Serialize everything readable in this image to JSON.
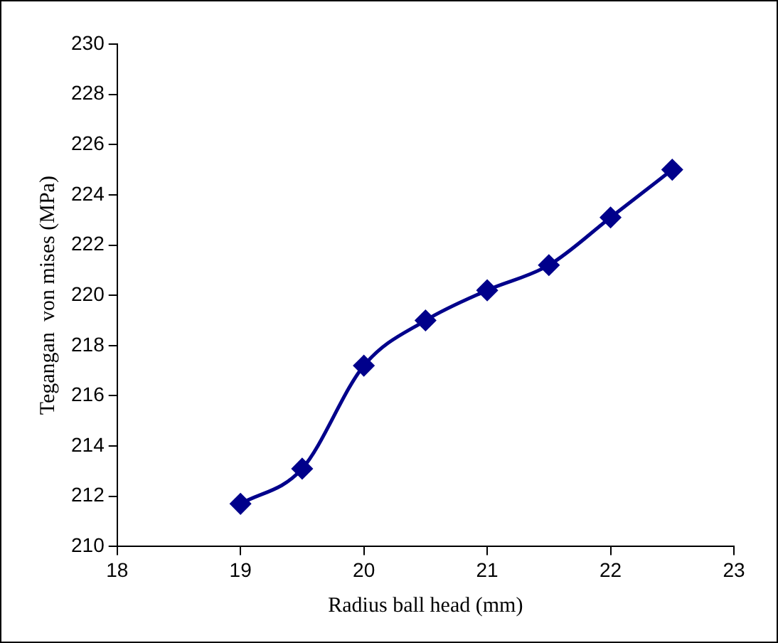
{
  "chart_data": {
    "type": "line",
    "xlabel": "Radius ball head (mm)",
    "ylabel": "Tegangan  von mises (MPa)",
    "x": [
      19,
      19.5,
      20,
      20.5,
      21,
      21.5,
      22,
      22.5
    ],
    "series": [
      {
        "color": "#00008b",
        "values": [
          211.7,
          213.1,
          217.2,
          219.0,
          220.2,
          221.2,
          223.1,
          225.0
        ]
      }
    ],
    "xlim": [
      18,
      23
    ],
    "xticks": [
      18,
      19,
      20,
      21,
      22,
      23
    ],
    "ylim": [
      210,
      230
    ],
    "yticks": [
      210,
      212,
      214,
      216,
      218,
      220,
      222,
      224,
      226,
      228,
      230
    ],
    "grid": false,
    "legend": false,
    "marker": "diamond",
    "line_style": "solid"
  }
}
